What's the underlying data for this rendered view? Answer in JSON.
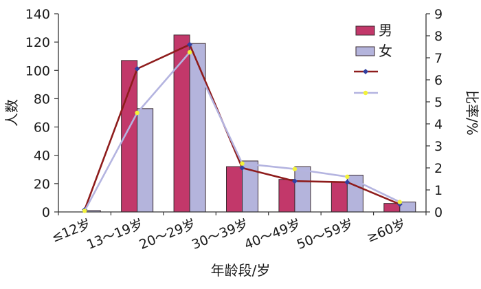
{
  "chart_data": {
    "type": "bar",
    "categories": [
      "≤12岁",
      "13～19岁",
      "20～29岁",
      "30～39岁",
      "40～49岁",
      "50～59岁",
      "≥60岁"
    ],
    "series": [
      {
        "name": "男",
        "type": "bar",
        "axis": "left",
        "color": "#c2386a",
        "values": [
          0,
          107,
          125,
          32,
          23,
          21,
          6
        ]
      },
      {
        "name": "女",
        "type": "bar",
        "axis": "left",
        "color": "#b4b4dc",
        "values": [
          1,
          73,
          119,
          36,
          32,
          26,
          7
        ]
      },
      {
        "type": "line",
        "axis": "right",
        "color": "#8e1c1c",
        "marker": "diamond",
        "marker_color": "#3040a0",
        "values": [
          0.1,
          6.5,
          7.6,
          2.0,
          1.4,
          1.35,
          0.35
        ]
      },
      {
        "type": "line",
        "axis": "right",
        "color": "#b4b4e0",
        "marker": "circle",
        "marker_color": "#f2f23a",
        "values": [
          0.05,
          4.5,
          7.25,
          2.2,
          1.95,
          1.6,
          0.45
        ]
      }
    ],
    "xlabel": "年龄段/岁",
    "ylabel": "人数",
    "y2label": "比率/%",
    "ylim": [
      0,
      140
    ],
    "y2lim": [
      0,
      9
    ],
    "yticks": [
      0,
      20,
      40,
      60,
      80,
      100,
      120,
      140
    ],
    "y2ticks": [
      0,
      1,
      2,
      3,
      4,
      5,
      6,
      7,
      8,
      9
    ],
    "grid": false,
    "legend": "top-right",
    "bar_outline_color": "#3a2a30",
    "axis_color": "#333333"
  }
}
